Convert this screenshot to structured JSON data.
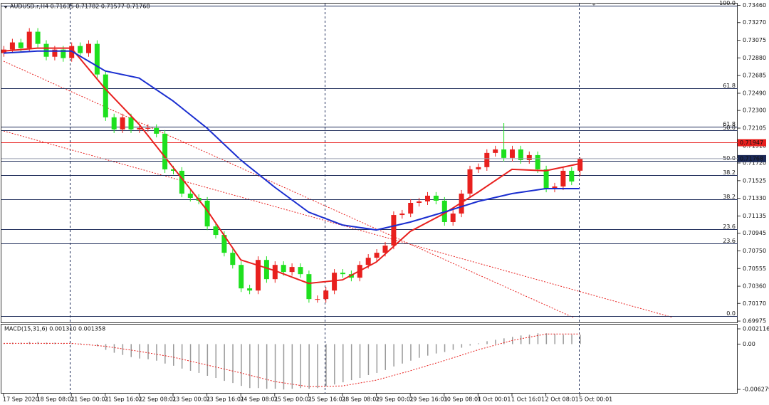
{
  "chart_data": [
    {
      "type": "candlestick",
      "title": "AUDUSD.r,H4  0.71635 0.71782 0.71577 0.71768",
      "categories": [
        "17 Sep 2020",
        null,
        null,
        null,
        "18 Sep 08:01",
        null,
        null,
        null,
        "21 Sep 00:01",
        null,
        null,
        null,
        "21 Sep 16:01",
        null,
        null,
        null,
        "22 Sep 08:01",
        null,
        null,
        null,
        "23 Sep 00:01",
        null,
        null,
        null,
        "23 Sep 16:01",
        null,
        null,
        null,
        "24 Sep 08:01",
        null,
        null,
        null,
        "25 Sep 00:01",
        null,
        null,
        null,
        "25 Sep 16:01",
        null,
        null,
        null,
        "28 Sep 08:01",
        null,
        null,
        null,
        "29 Sep 00:01",
        null,
        null,
        null,
        "29 Sep 16:01",
        null,
        null,
        null,
        "30 Sep 08:01",
        null,
        null,
        null,
        "1 Oct 00:01",
        null,
        null,
        null,
        "1 Oct 16:01",
        null,
        null,
        null,
        "2 Oct 08:01",
        null,
        null,
        null,
        "5 Oct 00:01"
      ],
      "open": [
        0.72933,
        0.72972,
        0.73051,
        0.72988,
        0.73169,
        0.73035,
        0.72893,
        0.72972,
        0.72878,
        0.73011,
        0.72933,
        0.73035,
        0.72697,
        0.72224,
        0.72091,
        0.72224,
        0.72091,
        0.72106,
        0.72106,
        0.72043,
        0.7165,
        0.71634,
        0.71382,
        0.71335,
        0.71304,
        0.7102,
        0.70926,
        0.70729,
        0.70595,
        0.70336,
        0.70312,
        0.7065,
        0.70438,
        0.70595,
        0.70517,
        0.70572,
        0.70493,
        0.70218,
        0.70218,
        0.70312,
        0.70509,
        0.70493,
        0.70454,
        0.70595,
        0.70674,
        0.70729,
        0.70808,
        0.71146,
        0.71162,
        0.7128,
        0.71296,
        0.71359,
        0.71304,
        0.71068,
        0.71162,
        0.71382,
        0.7165,
        0.71674,
        0.71831,
        0.7187,
        0.71776,
        0.7187,
        0.71752,
        0.71807,
        0.7165,
        0.71437,
        0.71461,
        0.71634,
        0.71635
      ],
      "high": [
        0.73012,
        0.73091,
        0.73091,
        0.73209,
        0.73209,
        0.73075,
        0.73012,
        0.73012,
        0.73051,
        0.73051,
        0.73075,
        0.73075,
        0.72737,
        0.72264,
        0.72264,
        0.72264,
        0.72146,
        0.72146,
        0.72146,
        0.72083,
        0.7169,
        0.71674,
        0.71422,
        0.71375,
        0.71344,
        0.7106,
        0.70966,
        0.70769,
        0.70635,
        0.70376,
        0.7069,
        0.7069,
        0.70635,
        0.70635,
        0.70612,
        0.70612,
        0.70533,
        0.70258,
        0.70352,
        0.70549,
        0.70549,
        0.70533,
        0.70635,
        0.70714,
        0.70769,
        0.70848,
        0.71186,
        0.71202,
        0.7132,
        0.71336,
        0.71399,
        0.71399,
        0.71344,
        0.71202,
        0.71422,
        0.7169,
        0.71714,
        0.71871,
        0.7191,
        0.7216,
        0.7191,
        0.7191,
        0.71847,
        0.71847,
        0.7169,
        0.71501,
        0.71674,
        0.71674,
        0.71782
      ],
      "low": [
        0.72893,
        0.72932,
        0.72948,
        0.72948,
        0.72995,
        0.72853,
        0.72853,
        0.72838,
        0.72838,
        0.72893,
        0.72893,
        0.72657,
        0.72184,
        0.72051,
        0.72051,
        0.72051,
        0.72051,
        0.72066,
        0.72003,
        0.7161,
        0.71594,
        0.71342,
        0.71295,
        0.71264,
        0.7098,
        0.70886,
        0.70689,
        0.70555,
        0.70296,
        0.70272,
        0.70272,
        0.70398,
        0.70398,
        0.70477,
        0.70477,
        0.70453,
        0.70178,
        0.70178,
        0.70178,
        0.70272,
        0.70453,
        0.70414,
        0.70414,
        0.70555,
        0.70634,
        0.70689,
        0.70768,
        0.71106,
        0.71122,
        0.7124,
        0.71256,
        0.71264,
        0.71028,
        0.71028,
        0.71122,
        0.71342,
        0.7161,
        0.71634,
        0.71791,
        0.71736,
        0.71736,
        0.71712,
        0.71712,
        0.7161,
        0.71397,
        0.71397,
        0.71421,
        0.71476,
        0.71577
      ],
      "close": [
        0.72972,
        0.73051,
        0.72988,
        0.73169,
        0.73035,
        0.72893,
        0.72972,
        0.72878,
        0.73011,
        0.72933,
        0.73035,
        0.72697,
        0.72224,
        0.72091,
        0.72224,
        0.72091,
        0.72106,
        0.72106,
        0.72043,
        0.7165,
        0.71634,
        0.71382,
        0.71335,
        0.71304,
        0.7102,
        0.70926,
        0.70729,
        0.70595,
        0.70336,
        0.70312,
        0.7065,
        0.70438,
        0.70595,
        0.70517,
        0.70572,
        0.70493,
        0.70218,
        0.70218,
        0.70312,
        0.70509,
        0.70493,
        0.70454,
        0.70595,
        0.70674,
        0.70729,
        0.70808,
        0.71146,
        0.71162,
        0.7128,
        0.71296,
        0.71359,
        0.71304,
        0.71068,
        0.71162,
        0.71382,
        0.7165,
        0.71674,
        0.71831,
        0.7187,
        0.71776,
        0.7187,
        0.71752,
        0.71807,
        0.7165,
        0.71437,
        0.71461,
        0.71634,
        0.71516,
        0.71768
      ],
      "up_color": "#e8201e",
      "down_color": "#1ee01e",
      "series": [
        {
          "color": "#e8201e",
          "x": [
            0,
            4,
            8,
            12,
            16,
            20,
            24,
            28,
            32,
            36,
            40,
            44,
            48,
            52,
            56,
            60,
            64,
            68
          ],
          "values": [
            0.72956,
            0.72988,
            0.72988,
            0.72539,
            0.72146,
            0.71673,
            0.71201,
            0.7065,
            0.70532,
            0.70391,
            0.7043,
            0.70627,
            0.70965,
            0.71162,
            0.71398,
            0.7165,
            0.71634,
            0.71713
          ]
        },
        {
          "color": "#1a2ed0",
          "x": [
            0,
            4,
            8,
            12,
            16,
            20,
            24,
            28,
            32,
            36,
            40,
            44,
            48,
            52,
            56,
            60,
            64,
            68
          ],
          "values": [
            0.72933,
            0.72956,
            0.72956,
            0.72736,
            0.72657,
            0.72405,
            0.72106,
            0.71752,
            0.71453,
            0.71178,
            0.71036,
            0.70981,
            0.71068,
            0.71178,
            0.71296,
            0.71382,
            0.71437,
            0.71437
          ]
        }
      ],
      "levels": [
        {
          "value": 0.7346,
          "label": "100.0"
        },
        {
          "value": 0.72547,
          "label": "61.8"
        },
        {
          "value": 0.72122,
          "label": "61.8"
        },
        {
          "value": 0.72082,
          "label": "50.0"
        },
        {
          "value": 0.71744,
          "label": "50.0"
        },
        {
          "value": 0.71587,
          "label": "38.2"
        },
        {
          "value": 0.7132,
          "label": "38.2"
        },
        {
          "value": 0.70989,
          "label": "23.6"
        },
        {
          "value": 0.70832,
          "label": "23.6"
        },
        {
          "value": 0.70029,
          "label": "0.0"
        }
      ],
      "level_color": "#1c2a58",
      "alert_line": 0.71947,
      "alert_color": "#e8201e",
      "last_price": 0.71768,
      "last_color": "#1c2a58",
      "ylim": [
        0.6996,
        0.7348
      ],
      "yticks": [
        {
          "value": 0.7346,
          "label": "0.73460"
        },
        {
          "value": 0.7327,
          "label": "0.73270"
        },
        0.73075,
        {
          "value": 0.7288,
          "label": "0.72880"
        },
        0.72685,
        {
          "value": 0.7249,
          "label": "0.72490"
        },
        {
          "value": 0.723,
          "label": "0.72300"
        },
        0.72105,
        {
          "value": 0.7191,
          "label": "0.71910"
        },
        {
          "value": 0.7172,
          "label": "0.71720"
        },
        0.71525,
        {
          "value": 0.7133,
          "label": "0.71330"
        },
        0.71135,
        0.70945,
        {
          "value": 0.7075,
          "label": "0.70750"
        },
        0.70555,
        {
          "value": 0.7036,
          "label": "0.70360"
        },
        {
          "value": 0.7017,
          "label": "0.70170"
        },
        0.69975
      ]
    },
    {
      "type": "bar",
      "title": "MACD(15,31,6) 0.001310 0.001358",
      "color": "#9a9a9a",
      "values": [
        0.0001,
        0.0002,
        0.0002,
        0.0003,
        0.0003,
        0.0002,
        0.0002,
        0.0001,
        0.0001,
        0.0001,
        0.0,
        -0.0003,
        -0.0008,
        -0.0012,
        -0.0015,
        -0.0018,
        -0.002,
        -0.0021,
        -0.0023,
        -0.0027,
        -0.003,
        -0.0034,
        -0.0037,
        -0.004,
        -0.0044,
        -0.0047,
        -0.0051,
        -0.0054,
        -0.0058,
        -0.0061,
        -0.0061,
        -0.0062,
        -0.0062,
        -0.0063,
        -0.0062,
        -0.0061,
        -0.0062,
        -0.0061,
        -0.0059,
        -0.0056,
        -0.0053,
        -0.005,
        -0.0047,
        -0.0043,
        -0.004,
        -0.0036,
        -0.0031,
        -0.0027,
        -0.0023,
        -0.0019,
        -0.0016,
        -0.0013,
        -0.0011,
        -0.0008,
        -0.0005,
        -0.0002,
        0.0001,
        0.0004,
        0.0006,
        0.0008,
        0.001,
        0.0012,
        0.0013,
        0.0015,
        0.0015,
        0.0014,
        0.0013,
        0.0013,
        0.0013
      ],
      "series": [
        {
          "color": "#e8201e",
          "x": [
            0,
            4,
            8,
            12,
            16,
            20,
            24,
            28,
            32,
            36,
            40,
            44,
            48,
            52,
            56,
            60,
            64,
            68
          ],
          "values": [
            0.0001,
            0.0001,
            0.0001,
            -0.0003,
            -0.001,
            -0.0018,
            -0.0029,
            -0.004,
            -0.0052,
            -0.0059,
            -0.0058,
            -0.005,
            -0.0037,
            -0.0023,
            -0.0008,
            0.0005,
            0.0014,
            0.0014
          ]
        }
      ],
      "ylim": [
        -0.00677,
        0.00271
      ],
      "yticks": [
        0.002116,
        {
          "value": 0,
          "label": "0.00"
        },
        -0.006279
      ]
    }
  ]
}
